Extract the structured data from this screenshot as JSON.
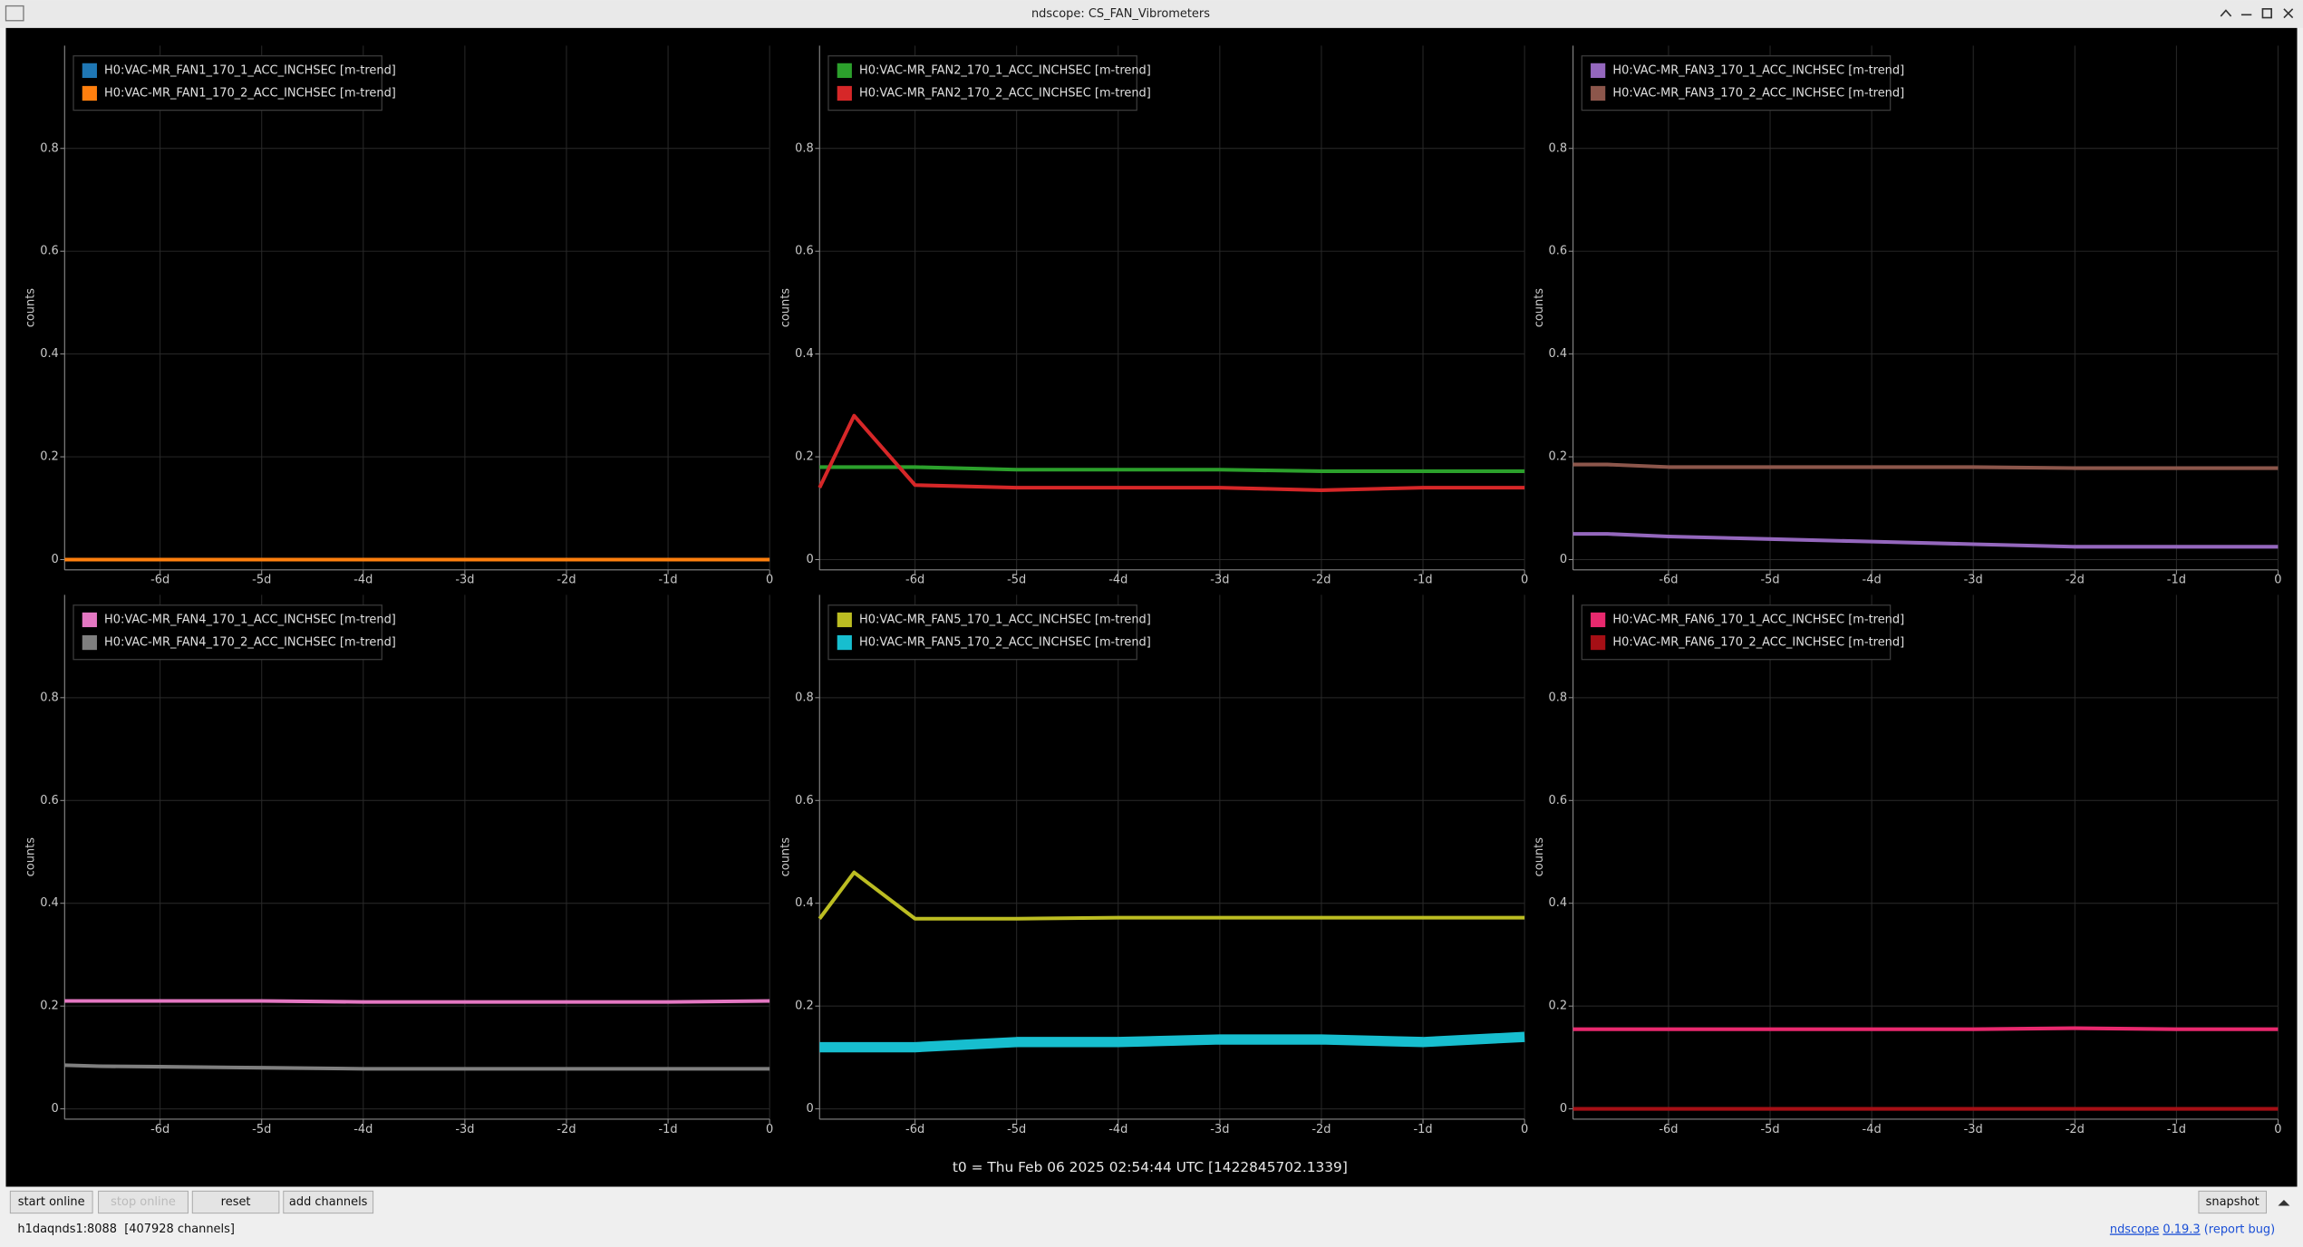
{
  "window": {
    "title": "ndscope: CS_FAN_Vibrometers"
  },
  "chart_data": [
    {
      "type": "line",
      "y_label": "counts",
      "x": [
        -6.94,
        -6.6,
        -6,
        -5,
        -4,
        -3,
        -2,
        -1,
        0
      ],
      "xlim": [
        -6.94,
        0
      ],
      "ylim": [
        -0.02,
        1.0
      ],
      "xticks": [
        {
          "value": -6,
          "label": "-6d"
        },
        {
          "value": -5,
          "label": "-5d"
        },
        {
          "value": -4,
          "label": "-4d"
        },
        {
          "value": -3,
          "label": "-3d"
        },
        {
          "value": -2,
          "label": "-2d"
        },
        {
          "value": -1,
          "label": "-1d"
        },
        0
      ],
      "yticks": [
        0,
        0.2,
        0.4,
        0.6,
        0.8
      ],
      "grid": true,
      "series": [
        {
          "name": "H0:VAC-MR_FAN1_170_1_ACC_INCHSEC [m-trend]",
          "color": "#1f77b4",
          "values": [
            0,
            0,
            0,
            0,
            0,
            0,
            0,
            0,
            0
          ]
        },
        {
          "name": "H0:VAC-MR_FAN1_170_2_ACC_INCHSEC [m-trend]",
          "color": "#ff7f0e",
          "values": [
            0,
            0,
            0,
            0,
            0,
            0,
            0,
            0,
            0
          ]
        }
      ]
    },
    {
      "type": "line",
      "y_label": "counts",
      "x": [
        -6.94,
        -6.6,
        -6,
        -5,
        -4,
        -3,
        -2,
        -1,
        0
      ],
      "xlim": [
        -6.94,
        0
      ],
      "ylim": [
        -0.02,
        1.0
      ],
      "xticks": [
        {
          "value": -6,
          "label": "-6d"
        },
        {
          "value": -5,
          "label": "-5d"
        },
        {
          "value": -4,
          "label": "-4d"
        },
        {
          "value": -3,
          "label": "-3d"
        },
        {
          "value": -2,
          "label": "-2d"
        },
        {
          "value": -1,
          "label": "-1d"
        },
        0
      ],
      "yticks": [
        0,
        0.2,
        0.4,
        0.6,
        0.8
      ],
      "grid": true,
      "series": [
        {
          "name": "H0:VAC-MR_FAN2_170_1_ACC_INCHSEC [m-trend]",
          "color": "#2ca02c",
          "values": [
            0.18,
            0.18,
            0.18,
            0.175,
            0.175,
            0.175,
            0.172,
            0.172,
            0.172
          ]
        },
        {
          "name": "H0:VAC-MR_FAN2_170_2_ACC_INCHSEC [m-trend]",
          "color": "#d62728",
          "values": [
            0.14,
            0.28,
            0.145,
            0.14,
            0.14,
            0.14,
            0.135,
            0.14,
            0.14
          ]
        }
      ]
    },
    {
      "type": "line",
      "y_label": "counts",
      "x": [
        -6.94,
        -6.6,
        -6,
        -5,
        -4,
        -3,
        -2,
        -1,
        0
      ],
      "xlim": [
        -6.94,
        0
      ],
      "ylim": [
        -0.02,
        1.0
      ],
      "xticks": [
        {
          "value": -6,
          "label": "-6d"
        },
        {
          "value": -5,
          "label": "-5d"
        },
        {
          "value": -4,
          "label": "-4d"
        },
        {
          "value": -3,
          "label": "-3d"
        },
        {
          "value": -2,
          "label": "-2d"
        },
        {
          "value": -1,
          "label": "-1d"
        },
        0
      ],
      "yticks": [
        0,
        0.2,
        0.4,
        0.6,
        0.8
      ],
      "grid": true,
      "series": [
        {
          "name": "H0:VAC-MR_FAN3_170_1_ACC_INCHSEC [m-trend]",
          "color": "#9467bd",
          "values": [
            0.05,
            0.05,
            0.045,
            0.04,
            0.035,
            0.03,
            0.025,
            0.025,
            0.025
          ]
        },
        {
          "name": "H0:VAC-MR_FAN3_170_2_ACC_INCHSEC [m-trend]",
          "color": "#8c564b",
          "values": [
            0.185,
            0.185,
            0.18,
            0.18,
            0.18,
            0.18,
            0.178,
            0.178,
            0.178
          ]
        }
      ]
    },
    {
      "type": "line",
      "y_label": "counts",
      "x": [
        -6.94,
        -6.6,
        -6,
        -5,
        -4,
        -3,
        -2,
        -1,
        0
      ],
      "xlim": [
        -6.94,
        0
      ],
      "ylim": [
        -0.02,
        1.0
      ],
      "xticks": [
        {
          "value": -6,
          "label": "-6d"
        },
        {
          "value": -5,
          "label": "-5d"
        },
        {
          "value": -4,
          "label": "-4d"
        },
        {
          "value": -3,
          "label": "-3d"
        },
        {
          "value": -2,
          "label": "-2d"
        },
        {
          "value": -1,
          "label": "-1d"
        },
        0
      ],
      "yticks": [
        0,
        0.2,
        0.4,
        0.6,
        0.8
      ],
      "grid": true,
      "series": [
        {
          "name": "H0:VAC-MR_FAN4_170_1_ACC_INCHSEC [m-trend]",
          "color": "#e377c2",
          "values": [
            0.21,
            0.21,
            0.21,
            0.21,
            0.208,
            0.208,
            0.208,
            0.208,
            0.21
          ]
        },
        {
          "name": "H0:VAC-MR_FAN4_170_2_ACC_INCHSEC [m-trend]",
          "color": "#7f7f7f",
          "values": [
            0.085,
            0.083,
            0.082,
            0.08,
            0.078,
            0.078,
            0.078,
            0.078,
            0.078
          ]
        }
      ]
    },
    {
      "type": "line",
      "y_label": "counts",
      "x": [
        -6.94,
        -6.6,
        -6,
        -5,
        -4,
        -3,
        -2,
        -1,
        0
      ],
      "xlim": [
        -6.94,
        0
      ],
      "ylim": [
        -0.02,
        1.0
      ],
      "xticks": [
        {
          "value": -6,
          "label": "-6d"
        },
        {
          "value": -5,
          "label": "-5d"
        },
        {
          "value": -4,
          "label": "-4d"
        },
        {
          "value": -3,
          "label": "-3d"
        },
        {
          "value": -2,
          "label": "-2d"
        },
        {
          "value": -1,
          "label": "-1d"
        },
        0
      ],
      "yticks": [
        0,
        0.2,
        0.4,
        0.6,
        0.8
      ],
      "grid": true,
      "series": [
        {
          "name": "H0:VAC-MR_FAN5_170_1_ACC_INCHSEC [m-trend]",
          "color": "#bcbd22",
          "values": [
            0.37,
            0.46,
            0.37,
            0.37,
            0.372,
            0.372,
            0.372,
            0.372,
            0.372
          ]
        },
        {
          "name": "H0:VAC-MR_FAN5_170_2_ACC_INCHSEC [m-trend]",
          "color": "#17becf",
          "values": [
            0.12,
            0.12,
            0.12,
            0.13,
            0.13,
            0.135,
            0.135,
            0.13,
            0.14
          ]
        }
      ]
    },
    {
      "type": "line",
      "y_label": "counts",
      "x": [
        -6.94,
        -6.6,
        -6,
        -5,
        -4,
        -3,
        -2,
        -1,
        0
      ],
      "xlim": [
        -6.94,
        0
      ],
      "ylim": [
        -0.02,
        1.0
      ],
      "xticks": [
        {
          "value": -6,
          "label": "-6d"
        },
        {
          "value": -5,
          "label": "-5d"
        },
        {
          "value": -4,
          "label": "-4d"
        },
        {
          "value": -3,
          "label": "-3d"
        },
        {
          "value": -2,
          "label": "-2d"
        },
        {
          "value": -1,
          "label": "-1d"
        },
        0
      ],
      "yticks": [
        0,
        0.2,
        0.4,
        0.6,
        0.8
      ],
      "grid": true,
      "series": [
        {
          "name": "H0:VAC-MR_FAN6_170_1_ACC_INCHSEC [m-trend]",
          "color": "#e8296e",
          "values": [
            0.155,
            0.155,
            0.155,
            0.155,
            0.155,
            0.155,
            0.157,
            0.155,
            0.155
          ]
        },
        {
          "name": "H0:VAC-MR_FAN6_170_2_ACC_INCHSEC [m-trend]",
          "color": "#a50f15",
          "values": [
            0,
            0,
            0,
            0,
            0,
            0,
            0,
            0,
            0
          ]
        }
      ]
    }
  ],
  "t0_label": "t0 = Thu Feb 06 2025 02:54:44 UTC [1422845702.1339]",
  "toolbar": {
    "buttons": [
      "start online",
      "stop online",
      "reset",
      "add channels"
    ],
    "snapshot": "snapshot"
  },
  "status": {
    "server": "h1daqnds1:8088  [407928 channels]",
    "app": "ndscope",
    "version": "0.19.3",
    "report": "(report bug)"
  }
}
